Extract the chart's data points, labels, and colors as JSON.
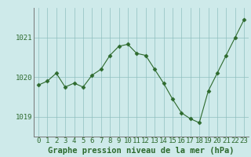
{
  "x": [
    0,
    1,
    2,
    3,
    4,
    5,
    6,
    7,
    8,
    9,
    10,
    11,
    12,
    13,
    14,
    15,
    16,
    17,
    18,
    19,
    20,
    21,
    22,
    23
  ],
  "y": [
    1019.8,
    1019.9,
    1020.1,
    1019.75,
    1019.85,
    1019.75,
    1020.05,
    1020.2,
    1020.55,
    1020.78,
    1020.83,
    1020.6,
    1020.55,
    1020.2,
    1019.85,
    1019.45,
    1019.1,
    1018.95,
    1018.85,
    1019.65,
    1020.1,
    1020.55,
    1021.0,
    1021.45
  ],
  "ylim": [
    1018.5,
    1021.75
  ],
  "yticks": [
    1019,
    1020,
    1021
  ],
  "xticks": [
    0,
    1,
    2,
    3,
    4,
    5,
    6,
    7,
    8,
    9,
    10,
    11,
    12,
    13,
    14,
    15,
    16,
    17,
    18,
    19,
    20,
    21,
    22,
    23
  ],
  "line_color": "#2d6a2d",
  "marker": "D",
  "marker_size": 2.5,
  "bg_color": "#ceeaea",
  "grid_color": "#8fbfbf",
  "xlabel": "Graphe pression niveau de la mer (hPa)",
  "xlabel_fontsize": 7.5,
  "tick_fontsize": 6.5
}
